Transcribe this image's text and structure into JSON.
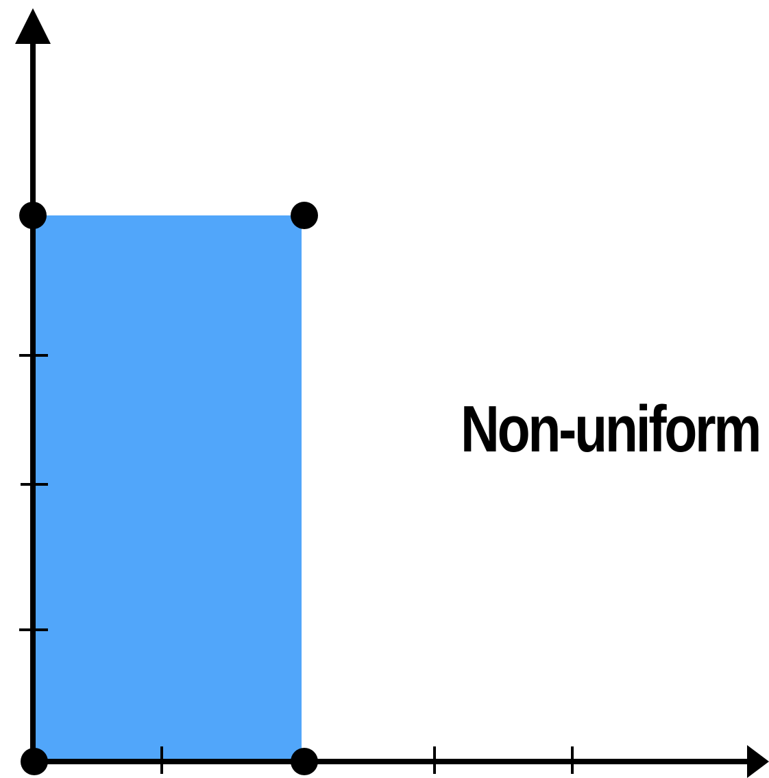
{
  "diagram": {
    "caption": "Non-uniform",
    "colors": {
      "rect_fill": "#51a6fa",
      "axis": "#000000",
      "vertex": "#000000",
      "background": "#ffffff"
    },
    "shape": "rectangle",
    "vertex_count": 4,
    "x_tick_count": 3,
    "y_tick_count": 3
  }
}
